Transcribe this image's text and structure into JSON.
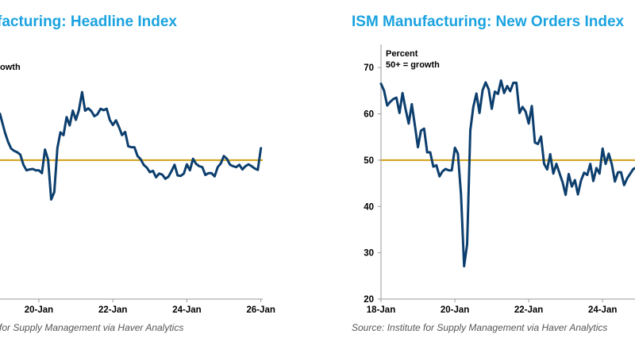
{
  "colors": {
    "title": "#1aa3e0",
    "line": "#0d3f6e",
    "ref": "#d4a017",
    "axis": "#999999",
    "text": "#000000",
    "source": "#555555"
  },
  "chart_data": [
    {
      "type": "line",
      "title": "facturing: Headline Index",
      "annotation_lines": [
        "owth"
      ],
      "x_ticks": [
        {
          "label": "20-Jan",
          "value": 2020
        },
        {
          "label": "22-Jan",
          "value": 2022
        },
        {
          "label": "24-Jan",
          "value": 2024
        },
        {
          "label": "26-Jan",
          "value": 2026
        }
      ],
      "xlim": [
        2018.95,
        2026.05
      ],
      "ylim": [
        20,
        75
      ],
      "ref_line": 50,
      "source": "for Supply Management via Haver Analytics",
      "series": [
        {
          "name": "ISM Manufacturing Headline Index",
          "x": [
            2018.95,
            2019.0,
            2019.083,
            2019.167,
            2019.25,
            2019.333,
            2019.417,
            2019.5,
            2019.583,
            2019.667,
            2019.75,
            2019.833,
            2019.917,
            2020.0,
            2020.083,
            2020.167,
            2020.25,
            2020.333,
            2020.417,
            2020.5,
            2020.583,
            2020.667,
            2020.75,
            2020.833,
            2020.917,
            2021.0,
            2021.083,
            2021.167,
            2021.25,
            2021.333,
            2021.417,
            2021.5,
            2021.583,
            2021.667,
            2021.75,
            2021.833,
            2021.917,
            2022.0,
            2022.083,
            2022.167,
            2022.25,
            2022.333,
            2022.417,
            2022.5,
            2022.583,
            2022.667,
            2022.75,
            2022.833,
            2022.917,
            2023.0,
            2023.083,
            2023.167,
            2023.25,
            2023.333,
            2023.417,
            2023.5,
            2023.583,
            2023.667,
            2023.75,
            2023.833,
            2023.917,
            2024.0,
            2024.083,
            2024.167,
            2024.25,
            2024.333,
            2024.417,
            2024.5,
            2024.583,
            2024.667,
            2024.75,
            2024.833,
            2024.917,
            2025.0,
            2025.083,
            2025.167,
            2025.25,
            2025.333,
            2025.417,
            2025.5,
            2025.583,
            2025.667,
            2025.75,
            2025.833,
            2025.917,
            2026.0
          ],
          "values": [
            60.0,
            58.5,
            56.0,
            54.0,
            52.5,
            52.0,
            51.7,
            51.2,
            49.0,
            47.8,
            48.0,
            48.1,
            47.8,
            47.8,
            47.2,
            52.3,
            50.1,
            41.5,
            43.1,
            52.6,
            56.0,
            55.4,
            59.3,
            57.5,
            60.7,
            58.7,
            60.8,
            64.7,
            60.7,
            61.2,
            60.6,
            59.5,
            59.9,
            61.1,
            60.8,
            61.1,
            58.7,
            57.6,
            58.6,
            57.1,
            55.4,
            56.1,
            53.0,
            52.8,
            52.8,
            50.9,
            50.2,
            49.0,
            48.4,
            47.4,
            47.7,
            46.3,
            47.1,
            46.9,
            46.0,
            46.4,
            47.6,
            49.0,
            46.7,
            46.6,
            47.1,
            49.1,
            47.8,
            50.3,
            49.2,
            48.7,
            48.5,
            46.8,
            47.2,
            47.2,
            46.5,
            48.5,
            49.3,
            50.9,
            50.3,
            49.0,
            48.7,
            48.5,
            49.0,
            48.0,
            48.7,
            49.1,
            48.7,
            48.2,
            47.9,
            52.6
          ]
        }
      ]
    },
    {
      "type": "line",
      "title": "ISM Manufacturing: New Orders Index",
      "annotation_lines": [
        "Percent",
        "50+ = growth"
      ],
      "y_ticks": [
        20,
        30,
        40,
        50,
        60,
        70
      ],
      "x_ticks": [
        {
          "label": "18-Jan",
          "value": 2018
        },
        {
          "label": "20-Jan",
          "value": 2020
        },
        {
          "label": "22-Jan",
          "value": 2022
        },
        {
          "label": "24-Jan",
          "value": 2024
        }
      ],
      "xlim": [
        2018,
        2025.2
      ],
      "ylim": [
        20,
        75
      ],
      "ref_line": 50,
      "source": "Source: Institute for Supply Management via Haver Analytics",
      "series": [
        {
          "name": "ISM Manufacturing New Orders Index",
          "x": [
            2018.0,
            2018.083,
            2018.167,
            2018.25,
            2018.333,
            2018.417,
            2018.5,
            2018.583,
            2018.667,
            2018.75,
            2018.833,
            2018.917,
            2019.0,
            2019.083,
            2019.167,
            2019.25,
            2019.333,
            2019.417,
            2019.5,
            2019.583,
            2019.667,
            2019.75,
            2019.833,
            2019.917,
            2020.0,
            2020.083,
            2020.167,
            2020.25,
            2020.333,
            2020.417,
            2020.5,
            2020.583,
            2020.667,
            2020.75,
            2020.833,
            2020.917,
            2021.0,
            2021.083,
            2021.167,
            2021.25,
            2021.333,
            2021.417,
            2021.5,
            2021.583,
            2021.667,
            2021.75,
            2021.833,
            2021.917,
            2022.0,
            2022.083,
            2022.167,
            2022.25,
            2022.333,
            2022.417,
            2022.5,
            2022.583,
            2022.667,
            2022.75,
            2022.833,
            2022.917,
            2023.0,
            2023.083,
            2023.167,
            2023.25,
            2023.333,
            2023.417,
            2023.5,
            2023.583,
            2023.667,
            2023.75,
            2023.833,
            2023.917,
            2024.0,
            2024.083,
            2024.167,
            2024.25,
            2024.333,
            2024.417,
            2024.5,
            2024.583,
            2024.667,
            2024.75,
            2024.833,
            2024.917,
            2025.0,
            2025.1
          ],
          "values": [
            66.5,
            65.0,
            61.8,
            62.6,
            63.2,
            63.5,
            60.2,
            64.5,
            61.0,
            57.9,
            62.1,
            57.5,
            52.8,
            56.4,
            56.8,
            51.7,
            51.7,
            48.6,
            48.9,
            46.5,
            47.6,
            48.1,
            47.8,
            47.8,
            52.7,
            51.4,
            42.6,
            27.1,
            31.8,
            56.4,
            61.5,
            64.4,
            60.2,
            65.1,
            66.8,
            65.3,
            61.1,
            64.8,
            64.3,
            67.2,
            64.5,
            66.0,
            64.9,
            66.7,
            66.7,
            60.2,
            61.5,
            60.5,
            57.9,
            61.7,
            53.8,
            53.5,
            55.1,
            49.2,
            48.0,
            51.3,
            47.1,
            49.2,
            47.2,
            45.2,
            42.5,
            47.0,
            44.3,
            45.7,
            42.6,
            45.6,
            47.3,
            46.8,
            49.2,
            45.5,
            48.3,
            47.1,
            52.5,
            49.2,
            51.4,
            49.1,
            45.4,
            47.4,
            47.4,
            44.6,
            46.1,
            47.1,
            48.1,
            48.4,
            45.5,
            48.0
          ]
        }
      ]
    }
  ]
}
